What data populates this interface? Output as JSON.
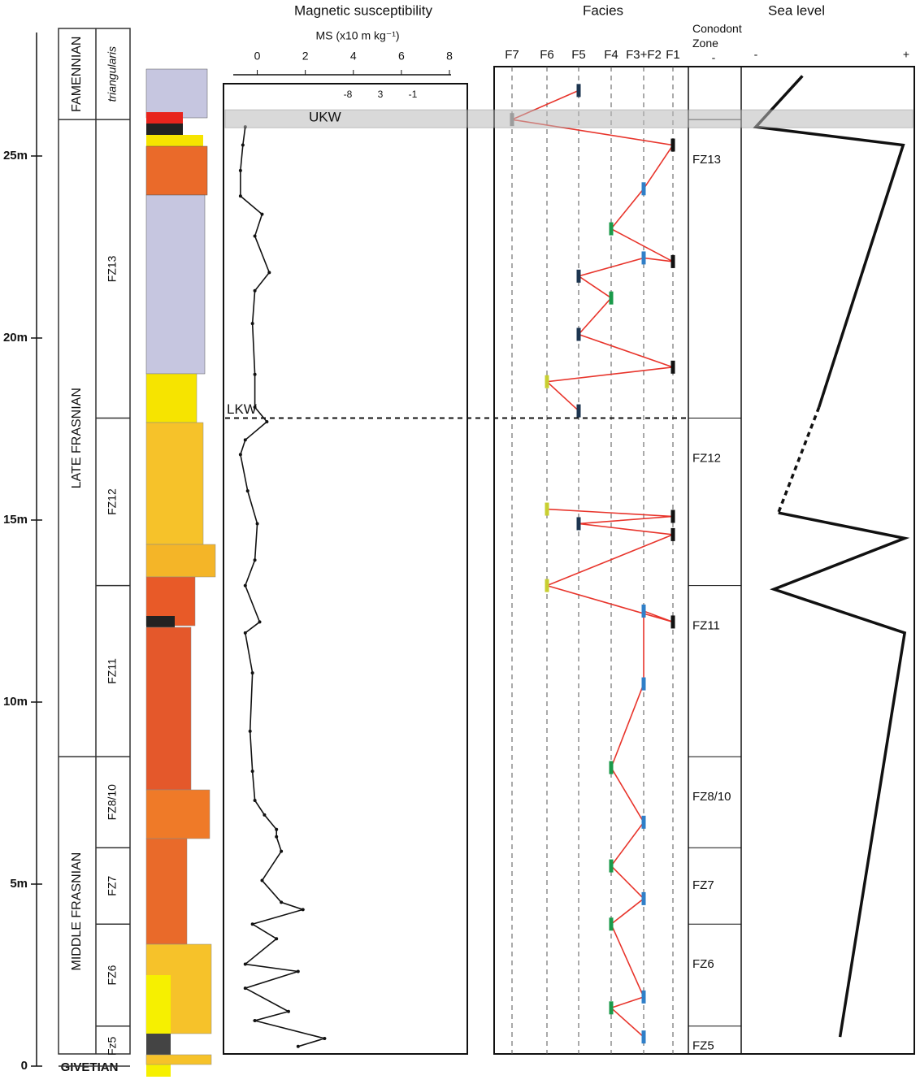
{
  "chart_data": {
    "type": "stratigraphic",
    "depth_axis": {
      "ylim": [
        0,
        28.6
      ],
      "yticks": [
        0,
        {
          "value": 5,
          "label": "5m"
        },
        {
          "value": 10,
          "label": "10m"
        },
        {
          "value": 15,
          "label": "15m"
        },
        {
          "value": 20,
          "label": "20m"
        },
        {
          "value": 25,
          "label": "25m"
        }
      ],
      "base_label": "GIVETIAN"
    },
    "stages": [
      {
        "name": "FAMENNIAN",
        "top": 28.5,
        "bottom": 26.0
      },
      {
        "name": "LATE FRASNIAN",
        "top": 26.0,
        "bottom": 8.5
      },
      {
        "name": "MIDDLE FRASNIAN",
        "top": 8.5,
        "bottom": 0
      }
    ],
    "zones": [
      {
        "name": "triangularis",
        "top": 28.5,
        "bottom": 26.0
      },
      {
        "name": "FZ13",
        "top": 26.0,
        "bottom": 17.8
      },
      {
        "name": "FZ12",
        "top": 17.8,
        "bottom": 13.2
      },
      {
        "name": "FZ11",
        "top": 13.2,
        "bottom": 8.5
      },
      {
        "name": "FZ8/10",
        "top": 8.5,
        "bottom": 6.0
      },
      {
        "name": "FZ7",
        "top": 6.0,
        "bottom": 3.9
      },
      {
        "name": "FZ6",
        "top": 3.9,
        "bottom": 1.1
      },
      {
        "name": "Fz5",
        "top": 1.1,
        "bottom": 0
      }
    ],
    "ms": {
      "title": "Magnetic susceptibility",
      "axis_label": "MS (x10   m kg⁻¹)",
      "sublabels": [
        "-8",
        "3",
        "-1"
      ],
      "xlim": [
        -1,
        8
      ],
      "xticks": [
        0,
        2,
        4,
        6,
        8
      ],
      "depth": [
        0.54,
        0.76,
        1.25,
        1.5,
        2.14,
        2.6,
        2.8,
        3.5,
        3.9,
        4.3,
        4.5,
        5.1,
        5.9,
        6.3,
        6.5,
        6.9,
        7.3,
        8.1,
        9.2,
        10.8,
        11.9,
        12.2,
        13.2,
        13.9,
        14.9,
        15.8,
        16.8,
        17.2,
        17.7,
        18.1,
        19.0,
        20.4,
        21.3,
        21.8,
        22.8,
        23.4,
        23.9,
        24.6,
        25.3,
        25.8
      ],
      "values": [
        1.7,
        2.8,
        -0.1,
        1.3,
        -0.5,
        1.7,
        -0.5,
        0.8,
        -0.2,
        1.9,
        1.0,
        0.2,
        1.0,
        0.8,
        0.8,
        0.3,
        -0.1,
        -0.2,
        -0.3,
        -0.2,
        -0.5,
        0.1,
        -0.5,
        -0.1,
        0,
        -0.4,
        -0.7,
        -0.5,
        0.4,
        -0.1,
        -0.1,
        -0.2,
        -0.1,
        0.5,
        -0.1,
        0.2,
        -0.7,
        -0.7,
        -0.6,
        -0.5
      ],
      "color": "#111111"
    },
    "facies": {
      "title": "Facies",
      "categories": [
        "F7",
        "F6",
        "F5",
        "F4",
        "F3+F2",
        "F1"
      ],
      "colors": [
        "#777777",
        "#c8cf30",
        "#1d3550",
        "#1a9a4a",
        "#2f7fc8",
        "#111111"
      ],
      "line_color": "#e8352c",
      "depth": [
        26.8,
        26.0,
        25.3,
        24.1,
        23.0,
        22.1,
        22.2,
        21.7,
        21.1,
        20.1,
        19.2,
        18.8,
        18.0,
        null,
        15.3,
        15.1,
        14.9,
        14.6,
        13.2,
        12.2,
        12.5,
        10.5,
        8.2,
        6.7,
        5.5,
        4.6,
        3.9,
        1.9,
        1.6,
        0.8
      ],
      "facies": [
        "F5",
        "F7",
        "F1",
        "F3+F2",
        "F4",
        "F1",
        "F3+F2",
        "F5",
        "F4",
        "F5",
        "F1",
        "F6",
        "F5",
        null,
        "F6",
        "F1",
        "F5",
        "F1",
        "F6",
        "F1",
        "F3+F2",
        "F3+F2",
        "F4",
        "F3+F2",
        "F4",
        "F3+F2",
        "F4",
        "F3+F2",
        "F4",
        "F3+F2"
      ]
    },
    "conodont": {
      "title": "Conodont\nZone",
      "marker": "-",
      "zones": [
        {
          "name": "FZ13",
          "top": 26.0,
          "bottom": 17.8
        },
        {
          "name": "FZ12",
          "top": 17.8,
          "bottom": 13.2
        },
        {
          "name": "FZ11",
          "top": 13.2,
          "bottom": 8.5
        },
        {
          "name": "FZ8/10",
          "top": 8.5,
          "bottom": 6.0
        },
        {
          "name": "FZ7",
          "top": 6.0,
          "bottom": 3.9
        },
        {
          "name": "FZ6",
          "top": 3.9,
          "bottom": 1.1
        },
        {
          "name": "FZ5",
          "top": 1.1,
          "bottom": 0
        }
      ]
    },
    "sea_level": {
      "title": "Sea level",
      "low_label": "-",
      "high_label": "+",
      "xlim": [
        0,
        100
      ],
      "depth": [
        27.2,
        25.8,
        25.3,
        18.1,
        null,
        15.2,
        14.5,
        13.1,
        11.9,
        0.8
      ],
      "values": [
        31,
        0,
        98,
        42,
        null,
        15,
        99,
        12,
        99,
        56
      ],
      "color": "#111111"
    },
    "annotations": [
      {
        "text": "UKW",
        "depth": 26.0
      },
      {
        "text": "LKW",
        "depth": 17.8
      }
    ]
  }
}
